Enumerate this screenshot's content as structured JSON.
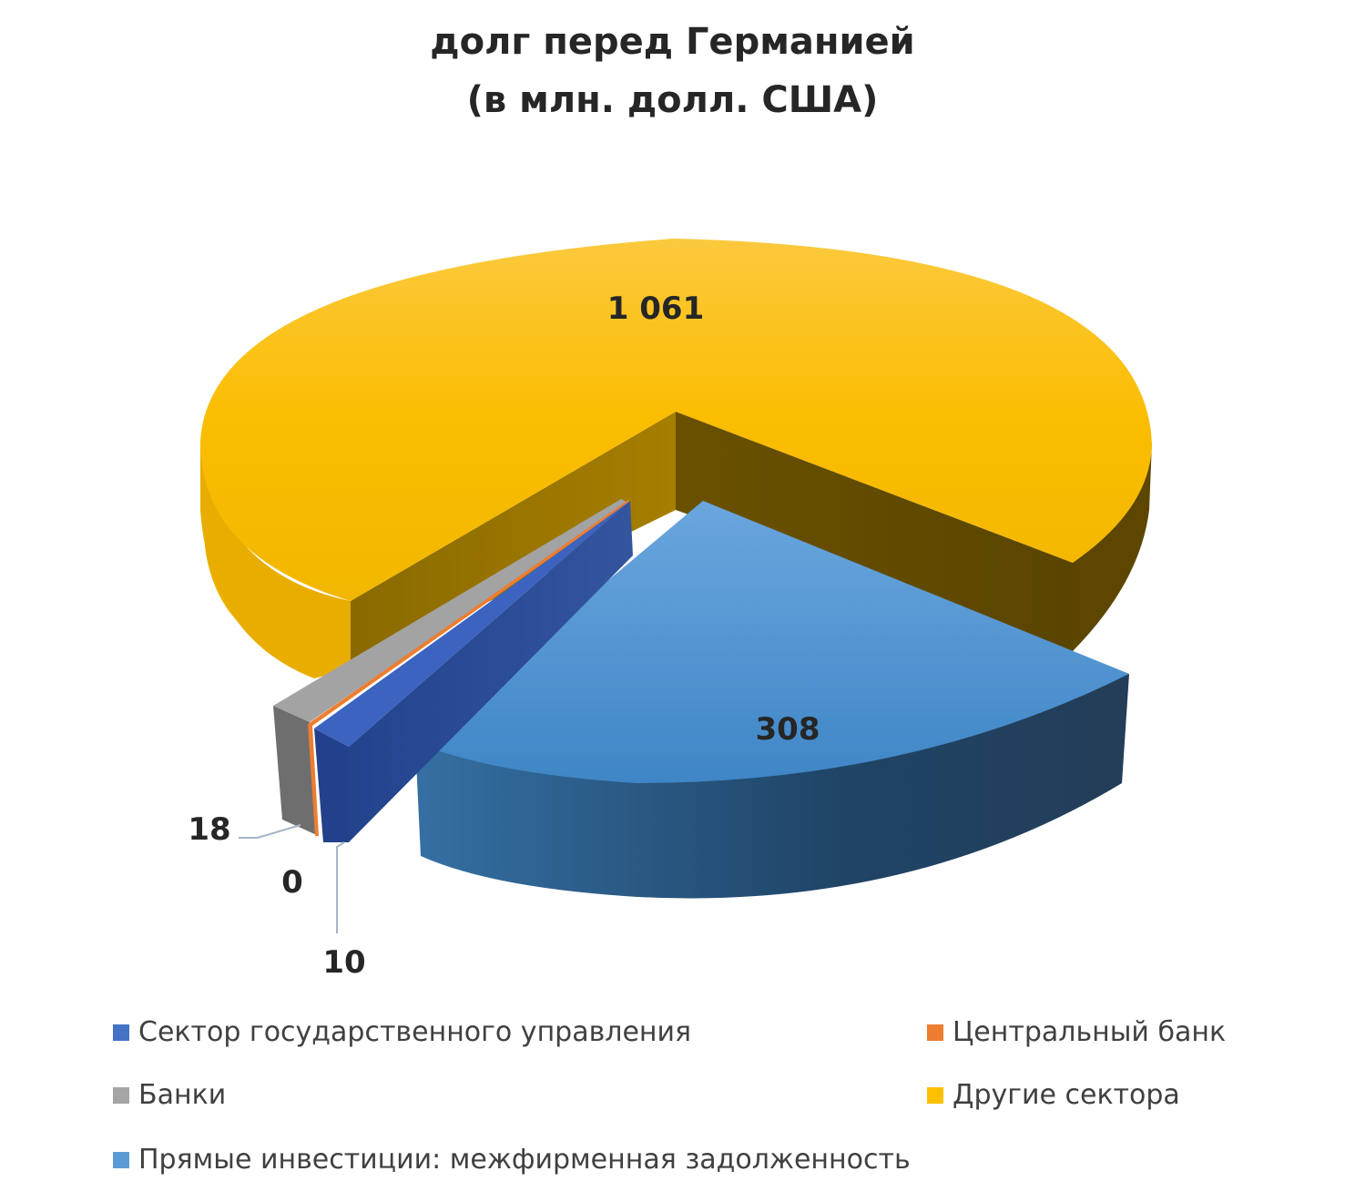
{
  "chart_data": {
    "type": "pie",
    "style": "3d-exploded",
    "title_lines": [
      "долг перед Германией",
      "(в млн. долл. США)"
    ],
    "slices": [
      {
        "label": "Сектор государственного управления",
        "value": 10,
        "value_label": "10",
        "color": "#4472c4"
      },
      {
        "label": "Центральный банк",
        "value": 0,
        "value_label": "0",
        "color": "#ed7d31"
      },
      {
        "label": "Банки",
        "value": 18,
        "value_label": "18",
        "color": "#a5a5a5"
      },
      {
        "label": "Другие сектора",
        "value": 1061,
        "value_label": "1 061",
        "color": "#ffc000"
      },
      {
        "label": "Прямые инвестиции: межфирменная задолженность",
        "value": 308,
        "value_label": "308",
        "color": "#5b9bd5"
      }
    ],
    "legend_position": "bottom"
  }
}
